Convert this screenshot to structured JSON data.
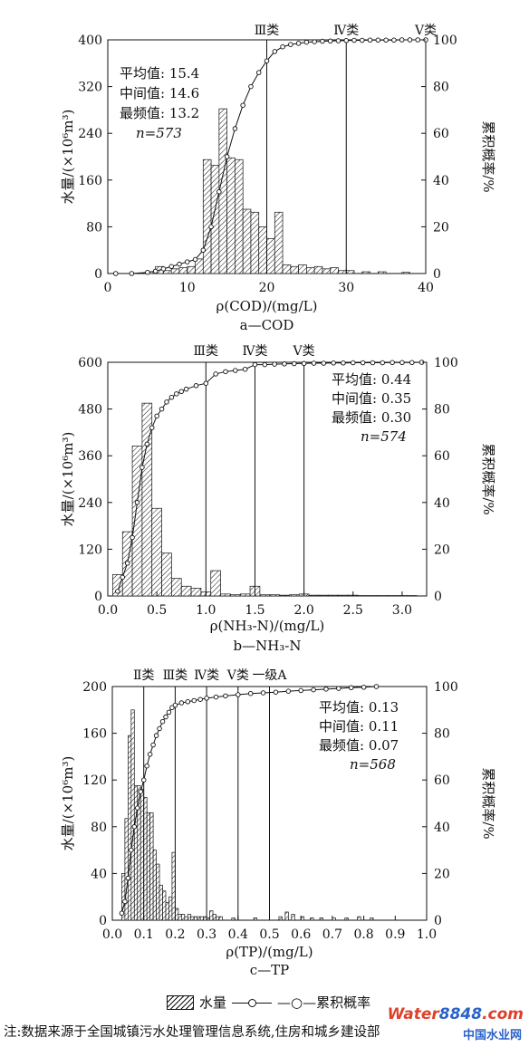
{
  "chart_data": [
    {
      "type": "bar",
      "caption": "a—COD",
      "xlabel": "ρ(COD)/(mg/L)",
      "ylabel": "水量/(×10⁶m³)",
      "y2label": "累积概率/%",
      "xlim": [
        0,
        40
      ],
      "xticks": [
        "0",
        "10",
        "20",
        "30",
        "40"
      ],
      "ylim": [
        0,
        400
      ],
      "yticks": [
        "0",
        "80",
        "160",
        "240",
        "320",
        "400"
      ],
      "y2lim": [
        0,
        100
      ],
      "y2ticks": [
        "0",
        "20",
        "40",
        "60",
        "80",
        "100"
      ],
      "stats": [
        "平均值: 15.4",
        "中间值: 14.6",
        "最频值: 13.2",
        "n=573"
      ],
      "thresholds": [
        {
          "label": "Ⅲ类",
          "x": 20
        },
        {
          "label": "Ⅳ类",
          "x": 30
        },
        {
          "label": "Ⅴ类",
          "x": 40
        }
      ],
      "series": [
        {
          "name": "水量",
          "kind": "bar",
          "x": [
            5.5,
            6.5,
            7.5,
            8.5,
            9.5,
            10.5,
            11.5,
            12.5,
            13.5,
            14.5,
            15.5,
            16.5,
            17.5,
            18.5,
            19.5,
            20.5,
            21.5,
            22.5,
            23.5,
            24.5,
            25.5,
            26.5,
            27.5,
            28.5,
            29.5,
            30.5,
            32.5,
            34.5,
            37.5
          ],
          "values": [
            3,
            12,
            5,
            8,
            10,
            12,
            25,
            195,
            185,
            282,
            198,
            195,
            110,
            105,
            80,
            60,
            105,
            15,
            12,
            15,
            10,
            12,
            8,
            10,
            5,
            5,
            3,
            3,
            2
          ],
          "width": 1.0
        },
        {
          "name": "累积概率",
          "kind": "line",
          "axis": "right",
          "x": [
            1,
            3,
            5,
            6,
            7,
            8,
            9,
            10,
            11,
            12,
            13,
            14,
            15,
            16,
            17,
            18,
            19,
            20,
            21,
            22,
            23,
            24,
            25,
            26,
            27,
            28,
            29,
            30,
            31,
            32,
            33,
            34,
            35,
            36,
            37,
            38,
            39,
            40
          ],
          "values": [
            0,
            0,
            0.5,
            1,
            2,
            3,
            4,
            5,
            6,
            10,
            20,
            35,
            50,
            62,
            72,
            80,
            86,
            91,
            95,
            97,
            98,
            98.5,
            99,
            99.2,
            99.4,
            99.5,
            99.6,
            99.7,
            99.8,
            99.8,
            99.9,
            99.9,
            99.9,
            99.9,
            100,
            100,
            100,
            100
          ]
        }
      ]
    },
    {
      "type": "bar",
      "caption": "b—NH₃-N",
      "xlabel": "ρ(NH₃-N)/(mg/L)",
      "ylabel": "水量/(×10⁶m³)",
      "y2label": "累积概率/%",
      "xlim": [
        0,
        3.25
      ],
      "xticks": [
        "0.0",
        "0.5",
        "1.0",
        "1.5",
        "2.0",
        "2.5",
        "3.0"
      ],
      "ylim": [
        0,
        600
      ],
      "yticks": [
        "0",
        "120",
        "240",
        "360",
        "480",
        "600"
      ],
      "y2lim": [
        0,
        100
      ],
      "y2ticks": [
        "0",
        "20",
        "40",
        "60",
        "80",
        "100"
      ],
      "stats": [
        "平均值: 0.44",
        "中间值: 0.35",
        "最频值: 0.30",
        "n=574"
      ],
      "thresholds": [
        {
          "label": "Ⅲ类",
          "x": 1.0
        },
        {
          "label": "Ⅳ类",
          "x": 1.5
        },
        {
          "label": "Ⅴ类",
          "x": 2.0
        }
      ],
      "series": [
        {
          "name": "水量",
          "kind": "bar",
          "x": [
            0.1,
            0.2,
            0.3,
            0.4,
            0.5,
            0.6,
            0.7,
            0.8,
            0.9,
            1.0,
            1.1,
            1.2,
            1.3,
            1.4,
            1.5,
            1.6,
            1.7,
            1.8,
            1.9,
            2.0,
            2.1,
            2.2,
            2.3,
            2.4,
            2.5,
            2.6,
            2.7,
            2.8,
            2.9,
            3.0,
            3.1
          ],
          "values": [
            55,
            165,
            385,
            495,
            225,
            110,
            45,
            25,
            20,
            10,
            65,
            5,
            3,
            5,
            25,
            3,
            3,
            2,
            3,
            5,
            2,
            2,
            2,
            2,
            2,
            1,
            1,
            1,
            1,
            1,
            1
          ],
          "width": 0.1
        },
        {
          "name": "累积概率",
          "kind": "line",
          "axis": "right",
          "x": [
            0.1,
            0.15,
            0.2,
            0.25,
            0.3,
            0.35,
            0.4,
            0.45,
            0.5,
            0.55,
            0.6,
            0.65,
            0.7,
            0.75,
            0.8,
            0.9,
            1.0,
            1.1,
            1.2,
            1.3,
            1.4,
            1.5,
            1.6,
            1.7,
            1.8,
            1.9,
            2.0,
            2.1,
            2.2,
            2.3,
            2.4,
            2.5,
            2.6,
            2.7,
            2.8,
            2.9,
            3.0,
            3.1,
            3.2
          ],
          "values": [
            2,
            8,
            14,
            25,
            40,
            55,
            65,
            72,
            77,
            80,
            83,
            85,
            86.5,
            87.5,
            88.5,
            90,
            91,
            95,
            96,
            96.5,
            97,
            99,
            99,
            99.2,
            99.3,
            99.4,
            99.5,
            99.6,
            99.6,
            99.7,
            99.7,
            99.8,
            99.8,
            99.8,
            99.8,
            99.9,
            99.9,
            99.9,
            100
          ]
        }
      ]
    },
    {
      "type": "bar",
      "caption": "c—TP",
      "xlabel": "ρ(TP)/(mg/L)",
      "ylabel": "水量/(×10⁶m³)",
      "y2label": "累积概率/%",
      "xlim": [
        0,
        1.0
      ],
      "xticks": [
        "0.0",
        "0.1",
        "0.2",
        "0.3",
        "0.4",
        "0.5",
        "0.6",
        "0.7",
        "0.8",
        "0.9",
        "1.0"
      ],
      "ylim": [
        0,
        200
      ],
      "yticks": [
        "0",
        "40",
        "80",
        "120",
        "160",
        "200"
      ],
      "y2lim": [
        0,
        100
      ],
      "y2ticks": [
        "0",
        "20",
        "40",
        "60",
        "80",
        "100"
      ],
      "stats": [
        "平均值: 0.13",
        "中间值: 0.11",
        "最频值: 0.07",
        "n=568"
      ],
      "thresholds": [
        {
          "label": "Ⅱ类",
          "x": 0.1
        },
        {
          "label": "Ⅲ类",
          "x": 0.2
        },
        {
          "label": "Ⅳ类",
          "x": 0.3
        },
        {
          "label": "Ⅴ类",
          "x": 0.4
        },
        {
          "label": "一级A",
          "x": 0.5
        }
      ],
      "series": [
        {
          "name": "水量",
          "kind": "bar",
          "x": [
            0.035,
            0.045,
            0.055,
            0.065,
            0.075,
            0.085,
            0.095,
            0.105,
            0.115,
            0.125,
            0.135,
            0.145,
            0.155,
            0.165,
            0.175,
            0.185,
            0.195,
            0.205,
            0.215,
            0.225,
            0.235,
            0.245,
            0.255,
            0.265,
            0.275,
            0.285,
            0.295,
            0.305,
            0.315,
            0.325,
            0.335,
            0.345,
            0.385,
            0.455,
            0.535,
            0.555,
            0.575,
            0.605,
            0.635,
            0.665,
            0.705,
            0.745,
            0.785,
            0.825
          ],
          "values": [
            40,
            87,
            158,
            180,
            115,
            115,
            112,
            105,
            92,
            92,
            60,
            48,
            30,
            25,
            15,
            20,
            58,
            10,
            5,
            5,
            3,
            5,
            3,
            3,
            3,
            3,
            3,
            2,
            8,
            5,
            3,
            3,
            2,
            2,
            3,
            7,
            5,
            3,
            2,
            2,
            2,
            2,
            3,
            2
          ],
          "width": 0.01
        },
        {
          "name": "累积概率",
          "kind": "line",
          "axis": "right",
          "x": [
            0.03,
            0.04,
            0.05,
            0.06,
            0.07,
            0.08,
            0.09,
            0.1,
            0.11,
            0.12,
            0.13,
            0.14,
            0.15,
            0.16,
            0.17,
            0.18,
            0.19,
            0.2,
            0.22,
            0.24,
            0.26,
            0.28,
            0.3,
            0.33,
            0.36,
            0.4,
            0.44,
            0.48,
            0.52,
            0.56,
            0.6,
            0.64,
            0.68,
            0.72,
            0.76,
            0.8,
            0.84
          ],
          "values": [
            3,
            8,
            18,
            30,
            40,
            48,
            55,
            60,
            66,
            71,
            75,
            79,
            82,
            85,
            87,
            89,
            91,
            92,
            93,
            93.5,
            94,
            94.5,
            95,
            95.5,
            96,
            96.5,
            97,
            97.3,
            97.6,
            98,
            98.3,
            98.6,
            98.9,
            99.2,
            99.5,
            99.7,
            100
          ]
        }
      ]
    }
  ],
  "legend": {
    "bar_label": "水量",
    "line_label": "—○—累积概率"
  },
  "footnote": "注:数据来源于全国城镇污水处理管理信息系统,住房和城乡建设部",
  "watermark": {
    "text": "Water",
    "number": "8848",
    "suffix": ".com",
    "sub": "中国水业网"
  }
}
